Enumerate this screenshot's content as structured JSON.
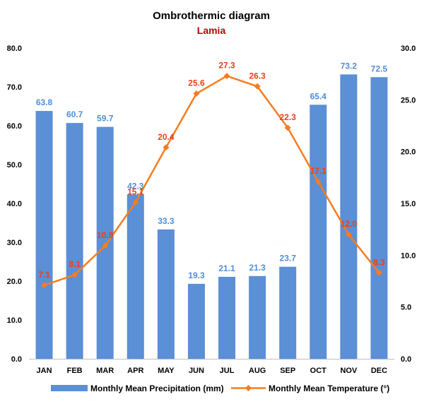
{
  "chart_data": {
    "type": "bar",
    "title": "Ombrothermic diagram",
    "subtitle": "Lamia",
    "categories": [
      "JAN",
      "FEB",
      "MAR",
      "APR",
      "MAY",
      "JUN",
      "JUL",
      "AUG",
      "SEP",
      "OCT",
      "NOV",
      "DEC"
    ],
    "series": [
      {
        "name": "Monthly Mean Precipitation (mm)",
        "type": "bar",
        "axis": "left",
        "color": "#5b8fd6",
        "label_color": "#4f8fd6",
        "values": [
          63.8,
          60.7,
          59.7,
          42.3,
          33.3,
          19.3,
          21.1,
          21.3,
          23.7,
          65.4,
          73.2,
          72.5
        ],
        "labels": [
          "63.8",
          "60.7",
          "59.7",
          "42.3",
          "33.3",
          "19.3",
          "21.1",
          "21.3",
          "23.7",
          "65.4",
          "73.2",
          "72.5"
        ]
      },
      {
        "name": "Monthly Mean Temperature (°)",
        "type": "line",
        "axis": "right",
        "color": "#f57c1f",
        "label_color": "#e8401c",
        "values": [
          7.1,
          8.1,
          10.9,
          15.1,
          20.4,
          25.6,
          27.3,
          26.3,
          22.3,
          17.1,
          12.0,
          8.3
        ],
        "labels": [
          "7.1",
          "8.1",
          "10.9",
          "15.1",
          "20.4",
          "25.6",
          "27.3",
          "26.3",
          "22.3",
          "17.1",
          "12.0",
          "8.3"
        ]
      }
    ],
    "y_left": {
      "ylim": [
        0,
        80
      ],
      "ticks": [
        "0.0",
        "10.0",
        "20.0",
        "30.0",
        "40.0",
        "50.0",
        "60.0",
        "70.0",
        "80.0"
      ]
    },
    "y_right": {
      "ylim": [
        0,
        30
      ],
      "ticks": [
        "0.0",
        "5.0",
        "10.0",
        "15.0",
        "20.0",
        "25.0",
        "30.0"
      ]
    },
    "grid": false,
    "legend_position": "bottom"
  }
}
